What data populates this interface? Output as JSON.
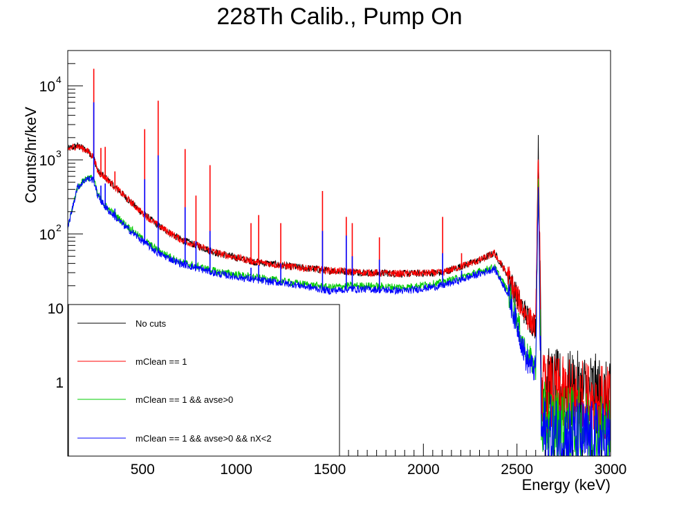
{
  "chart_data": {
    "type": "line",
    "title": "228Th Calib., Pump On",
    "xlabel": "Energy (keV)",
    "ylabel": "Counts/hr/keV",
    "xlim": [
      100,
      3000
    ],
    "ylim": [
      0.1,
      30000
    ],
    "yscale": "log",
    "grid": false,
    "legend_position": "bottom-left",
    "x_ticks": [
      {
        "value": 500,
        "label": "500"
      },
      {
        "value": 1000,
        "label": "1000"
      },
      {
        "value": 1500,
        "label": "1500"
      },
      {
        "value": 2000,
        "label": "2000"
      },
      {
        "value": 2500,
        "label": "2500"
      },
      {
        "value": 3000,
        "label": "3000"
      }
    ],
    "y_ticks": [
      {
        "value": 1,
        "mantissa": "1",
        "exp": ""
      },
      {
        "value": 10,
        "mantissa": "10",
        "exp": ""
      },
      {
        "value": 100,
        "mantissa": "10",
        "exp": "2"
      },
      {
        "value": 1000,
        "mantissa": "10",
        "exp": "3"
      },
      {
        "value": 10000,
        "mantissa": "10",
        "exp": "4"
      }
    ],
    "series": [
      {
        "name": "No cuts",
        "color": "#000000",
        "x": [
          100,
          150,
          200,
          238,
          260,
          300,
          400,
          500,
          583,
          700,
          900,
          1100,
          1300,
          1500,
          1600,
          1700,
          1900,
          2100,
          2300,
          2380,
          2450,
          2500,
          2550,
          2600,
          2614,
          2630,
          2700,
          2800,
          2900,
          3000
        ],
        "y": [
          1400,
          1550,
          1350,
          1100,
          700,
          580,
          330,
          190,
          130,
          85,
          55,
          42,
          36,
          32,
          31,
          30,
          29,
          30,
          44,
          55,
          28,
          14,
          8,
          5.5,
          1500,
          0.9,
          0.8,
          0.75,
          0.75,
          0.5
        ]
      },
      {
        "name": "mClean == 1",
        "color": "#ff0000",
        "x": [
          100,
          150,
          200,
          238,
          260,
          300,
          400,
          500,
          583,
          700,
          900,
          1100,
          1300,
          1500,
          1600,
          1700,
          1900,
          2100,
          2300,
          2380,
          2450,
          2500,
          2550,
          2600,
          2614,
          2630,
          2700,
          2800,
          2900,
          3000
        ],
        "y": [
          1400,
          1550,
          1350,
          1100,
          700,
          580,
          330,
          190,
          130,
          85,
          55,
          42,
          36,
          32,
          31,
          30,
          29,
          30,
          44,
          55,
          28,
          14,
          8,
          5.5,
          1500,
          0.75,
          0.65,
          0.6,
          0.55,
          0.45
        ]
      },
      {
        "name": "mClean == 1 && avse>0",
        "color": "#00cc00",
        "x": [
          100,
          150,
          200,
          238,
          260,
          300,
          400,
          500,
          583,
          700,
          900,
          1100,
          1300,
          1500,
          1600,
          1700,
          1900,
          2100,
          2300,
          2380,
          2450,
          2500,
          2550,
          2600,
          2614,
          2630,
          2700,
          2800,
          2900,
          3000
        ],
        "y": [
          120,
          420,
          580,
          560,
          340,
          240,
          140,
          85,
          60,
          42,
          31,
          26,
          22,
          19,
          20,
          20,
          19,
          22,
          31,
          36,
          17,
          7,
          2.4,
          1.6,
          600,
          0.3,
          0.25,
          0.25,
          0.22,
          0.2
        ]
      },
      {
        "name": "mClean == 1 && avse>0 && nX<2",
        "color": "#0000ff",
        "x": [
          100,
          150,
          200,
          238,
          260,
          300,
          400,
          500,
          583,
          700,
          900,
          1100,
          1300,
          1500,
          1600,
          1700,
          1900,
          2100,
          2300,
          2380,
          2450,
          2500,
          2550,
          2600,
          2614,
          2630,
          2700,
          2800,
          2900,
          3000
        ],
        "y": [
          120,
          420,
          560,
          540,
          330,
          230,
          130,
          80,
          55,
          40,
          29,
          24,
          21,
          17,
          18,
          18,
          17,
          20,
          29,
          34,
          16,
          6,
          2.0,
          1.4,
          500,
          0.2,
          0.18,
          0.18,
          0.16,
          0.15
        ]
      }
    ],
    "peaks": [
      {
        "energy": 239,
        "red": 17000,
        "blue": 6000
      },
      {
        "energy": 277,
        "red": 1450,
        "blue": 450
      },
      {
        "energy": 300,
        "red": 1500,
        "blue": 480
      },
      {
        "energy": 352,
        "red": 700,
        "blue": 220
      },
      {
        "energy": 511,
        "red": 2600,
        "blue": 550
      },
      {
        "energy": 583,
        "red": 6300,
        "blue": 1150
      },
      {
        "energy": 727,
        "red": 1400,
        "blue": 230
      },
      {
        "energy": 785,
        "red": 330,
        "blue": 80
      },
      {
        "energy": 860,
        "red": 850,
        "blue": 110
      },
      {
        "energy": 1079,
        "red": 140,
        "blue": 35
      },
      {
        "energy": 1120,
        "red": 180,
        "blue": 38
      },
      {
        "energy": 1238,
        "red": 140,
        "blue": 40
      },
      {
        "energy": 1461,
        "red": 380,
        "blue": 110
      },
      {
        "energy": 1588,
        "red": 170,
        "blue": 95
      },
      {
        "energy": 1620,
        "red": 140,
        "blue": 50
      },
      {
        "energy": 1765,
        "red": 90,
        "blue": 45
      },
      {
        "energy": 2103,
        "red": 170,
        "blue": 55
      },
      {
        "energy": 2204,
        "red": 55,
        "blue": 32
      }
    ]
  }
}
